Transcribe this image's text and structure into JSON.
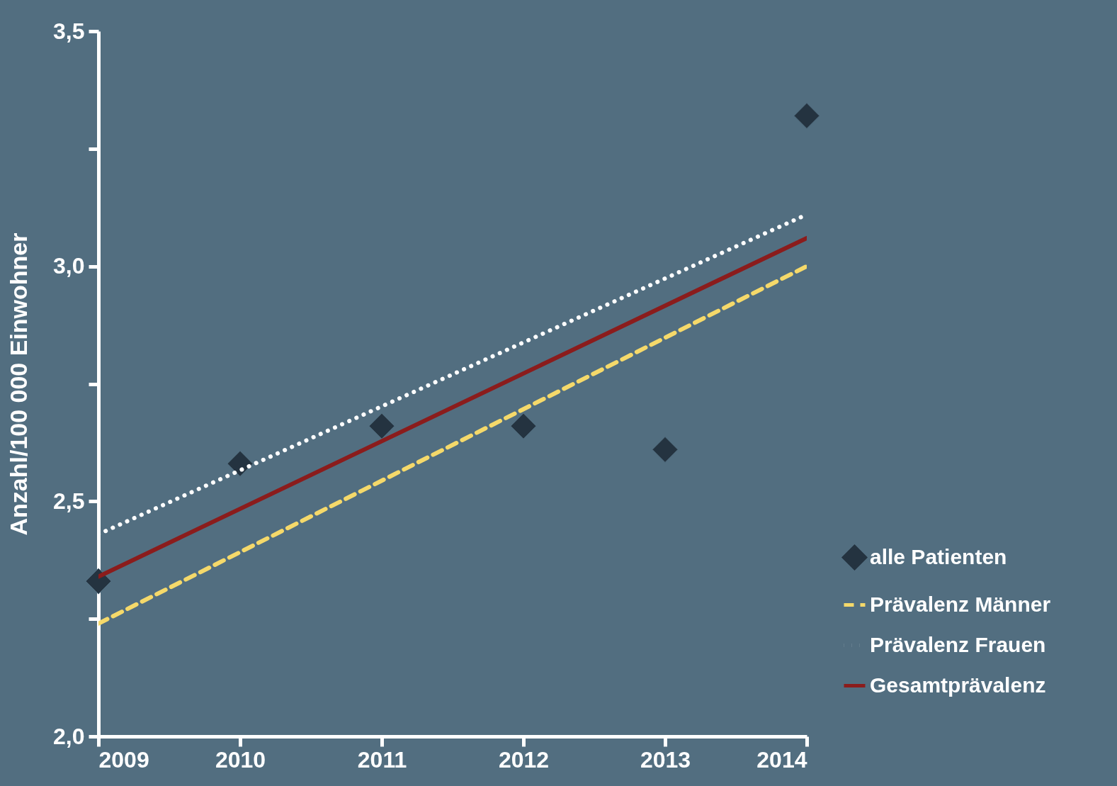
{
  "chart_data": {
    "type": "line",
    "ylabel": "Anzahl/100 000 Einwohner",
    "xlim": [
      2009,
      2014
    ],
    "xticks": [
      2009,
      2010,
      2011,
      2012,
      2013,
      2014
    ],
    "ylim": [
      2.0,
      3.5
    ],
    "yticks": [
      {
        "value": 2.0,
        "label": "2,0"
      },
      {
        "value": 2.25,
        "label": null
      },
      {
        "value": 2.5,
        "label": "2,5"
      },
      {
        "value": 2.75,
        "label": null
      },
      {
        "value": 3.0,
        "label": "3,0"
      },
      {
        "value": 3.25,
        "label": null
      },
      {
        "value": 3.5,
        "label": "3,5"
      }
    ],
    "grid": false,
    "legend": "bottom right",
    "series": [
      {
        "type": "scatter",
        "name": "alle Patienten",
        "color": "#243340",
        "marker": "diamond",
        "x": [
          2009,
          2010,
          2011,
          2012,
          2013,
          2014
        ],
        "values": [
          2.33,
          2.58,
          2.66,
          2.66,
          2.61,
          3.32
        ]
      },
      {
        "name": "Prävalenz Männer",
        "color": "#f5d96a",
        "line_style": "dashed",
        "x": [
          2009,
          2014
        ],
        "values": [
          2.24,
          3.0
        ]
      },
      {
        "name": "Prävalenz Frauen",
        "color": "#ffffff",
        "line_style": "dotted",
        "x": [
          2009,
          2014
        ],
        "values": [
          2.43,
          3.11
        ]
      },
      {
        "name": "Gesamtprävalenz",
        "color": "#8b1c1c",
        "line_style": "solid",
        "x": [
          2009,
          2014
        ],
        "values": [
          2.34,
          3.06
        ]
      }
    ]
  }
}
